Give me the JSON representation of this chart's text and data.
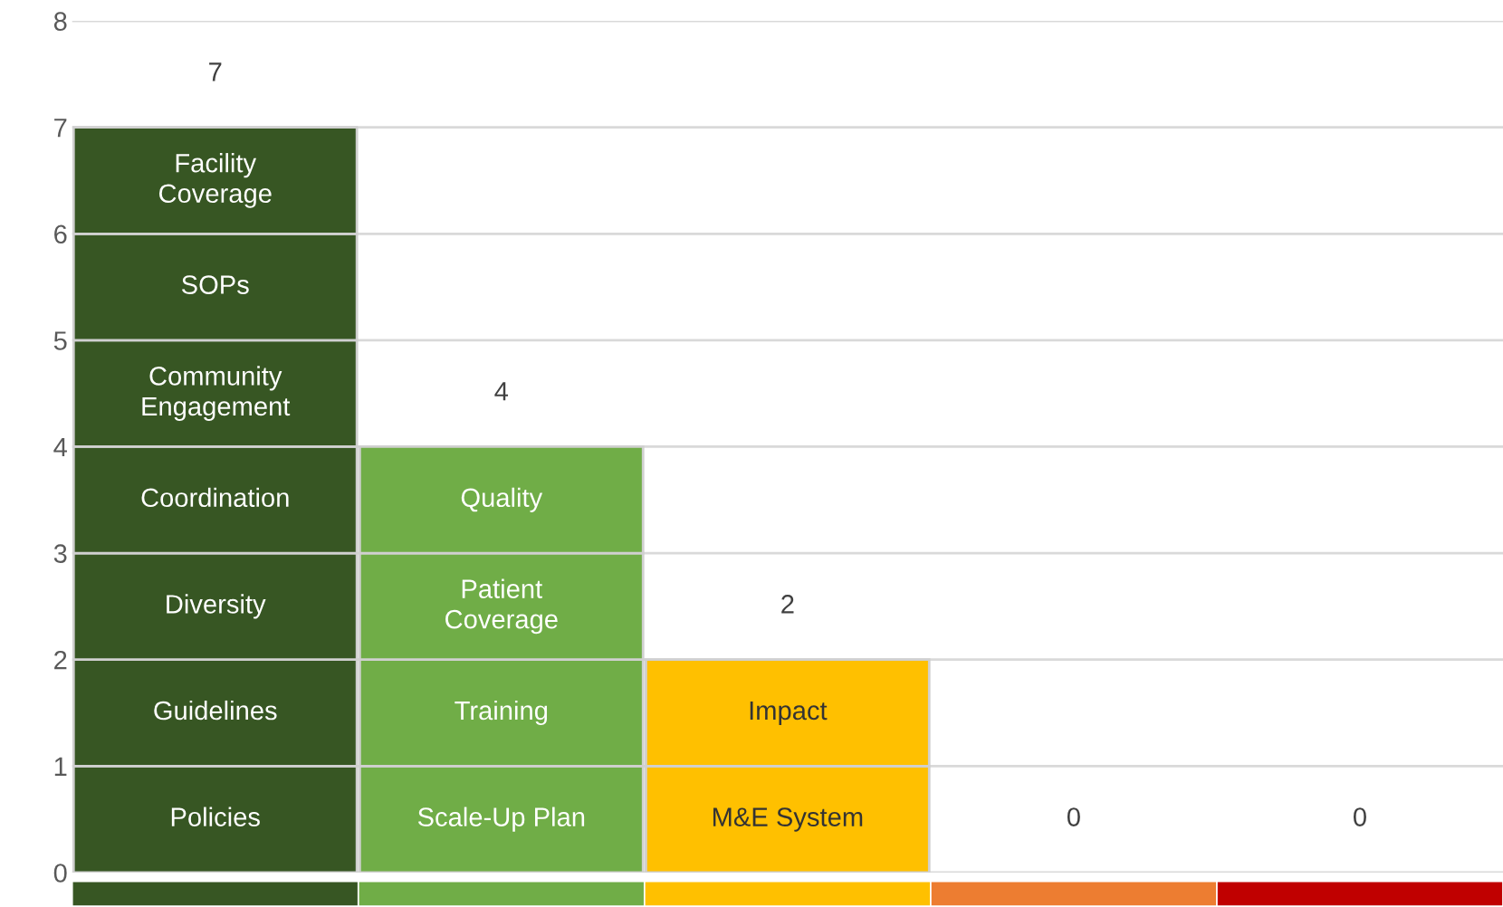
{
  "chart_data": {
    "type": "bar",
    "stacked": true,
    "categories": [
      null,
      null,
      null,
      null,
      null
    ],
    "series": [
      {
        "colors": [
          "#375623",
          "#70ad47",
          "#ffc000",
          "#ed7d31",
          "#c00000"
        ],
        "values": [
          1,
          1,
          1,
          null,
          null
        ],
        "value_labels": [
          "Policies",
          "Scale-Up Plan",
          "M&E System",
          null,
          null
        ]
      },
      {
        "colors": [
          "#375623",
          "#70ad47",
          "#ffc000",
          "#ed7d31",
          "#c00000"
        ],
        "values": [
          1,
          1,
          1,
          null,
          null
        ],
        "value_labels": [
          "Guidelines",
          "Training",
          "Impact",
          null,
          null
        ]
      },
      {
        "colors": [
          "#375623",
          "#70ad47",
          "#ffc000",
          "#ed7d31",
          "#c00000"
        ],
        "values": [
          1,
          1,
          null,
          null,
          null
        ],
        "value_labels": [
          "Diversity",
          "Patient Coverage",
          null,
          null,
          null
        ]
      },
      {
        "colors": [
          "#375623",
          "#70ad47",
          "#ffc000",
          "#ed7d31",
          "#c00000"
        ],
        "values": [
          1,
          1,
          null,
          null,
          null
        ],
        "value_labels": [
          "Coordination",
          "Quality",
          null,
          null,
          null
        ]
      },
      {
        "colors": [
          "#375623",
          "#70ad47",
          "#ffc000",
          "#ed7d31",
          "#c00000"
        ],
        "values": [
          1,
          null,
          null,
          null,
          null
        ],
        "value_labels": [
          "Community Engagement",
          null,
          null,
          null,
          null
        ]
      },
      {
        "colors": [
          "#375623",
          "#70ad47",
          "#ffc000",
          "#ed7d31",
          "#c00000"
        ],
        "values": [
          1,
          null,
          null,
          null,
          null
        ],
        "value_labels": [
          "SOPs",
          null,
          null,
          null,
          null
        ]
      },
      {
        "colors": [
          "#375623",
          "#70ad47",
          "#ffc000",
          "#ed7d31",
          "#c00000"
        ],
        "values": [
          1,
          null,
          null,
          null,
          null
        ],
        "value_labels": [
          "Facility Coverage",
          null,
          null,
          null,
          null
        ]
      }
    ],
    "totals": [
      "7",
      "4",
      "2",
      "0",
      "0"
    ],
    "ylim": [
      0,
      8
    ],
    "yticks": [
      0,
      1,
      2,
      3,
      4,
      5,
      6,
      7,
      8
    ],
    "grid": "y",
    "legend": false,
    "tick_labels": "y"
  }
}
